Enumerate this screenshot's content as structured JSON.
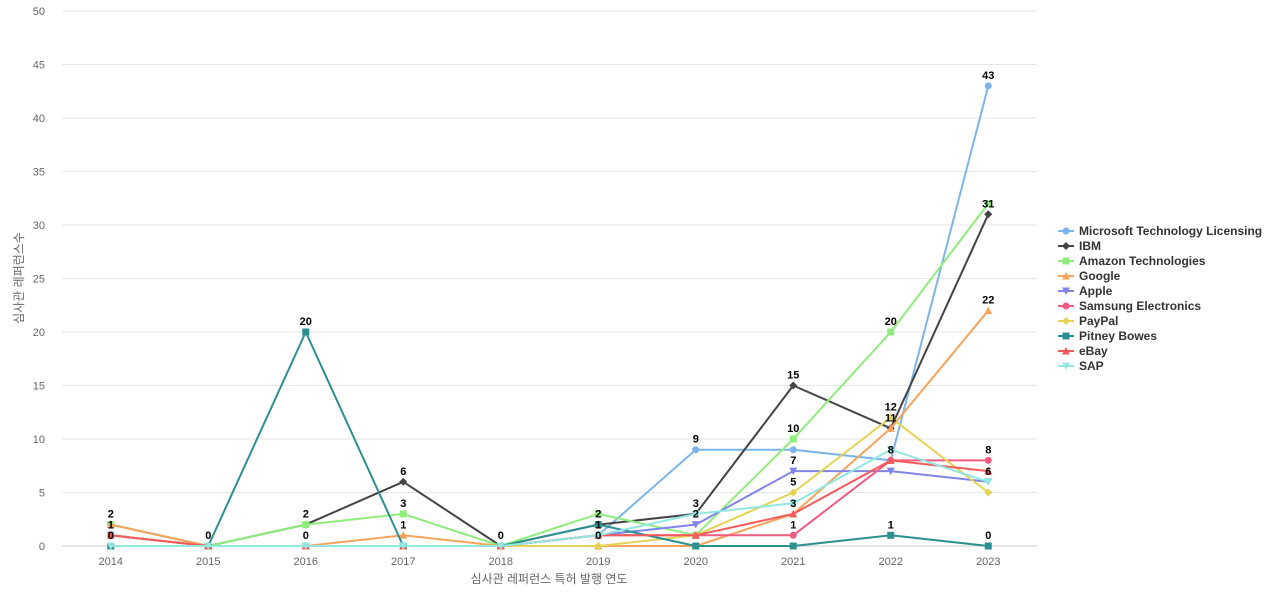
{
  "chart_data": {
    "type": "line",
    "xlabel": "심사관 레퍼런스 특허 발행 연도",
    "ylabel": "심사관 레퍼런스수",
    "x": [
      "2014",
      "2015",
      "2016",
      "2017",
      "2018",
      "2019",
      "2020",
      "2021",
      "2022",
      "2023"
    ],
    "ylim": [
      0,
      50
    ],
    "yticks": [
      0,
      5,
      10,
      15,
      20,
      25,
      30,
      35,
      40,
      45,
      50
    ],
    "grid": true,
    "legend_position": "right",
    "series": [
      {
        "name": "Microsoft Technology Licensing",
        "color": "#7cb5ec",
        "marker": "circle",
        "values": [
          2,
          0,
          0,
          0,
          0,
          1,
          9,
          9,
          8,
          43
        ],
        "labels": [
          true,
          false,
          false,
          false,
          false,
          false,
          true,
          false,
          false,
          true
        ]
      },
      {
        "name": "IBM",
        "color": "#434348",
        "marker": "diamond",
        "values": [
          1,
          0,
          2,
          6,
          0,
          2,
          3,
          15,
          11,
          31
        ],
        "labels": [
          false,
          false,
          false,
          true,
          false,
          false,
          true,
          true,
          false,
          true
        ]
      },
      {
        "name": "Amazon Technologies",
        "color": "#90ed7d",
        "marker": "square",
        "values": [
          2,
          0,
          2,
          3,
          0,
          3,
          1,
          10,
          20,
          32
        ],
        "labels": [
          false,
          false,
          true,
          true,
          false,
          false,
          false,
          true,
          true,
          false
        ]
      },
      {
        "name": "Google",
        "color": "#f7a35c",
        "marker": "triangle",
        "values": [
          2,
          0,
          0,
          1,
          0,
          0,
          0,
          3,
          11,
          22
        ],
        "labels": [
          false,
          false,
          true,
          true,
          false,
          true,
          false,
          true,
          true,
          true
        ]
      },
      {
        "name": "Apple",
        "color": "#8085e9",
        "marker": "triangle-down",
        "values": [
          1,
          0,
          0,
          0,
          0,
          1,
          2,
          7,
          7,
          6
        ],
        "labels": [
          false,
          false,
          false,
          false,
          false,
          false,
          true,
          true,
          false,
          false
        ]
      },
      {
        "name": "Samsung Electronics",
        "color": "#f15c80",
        "marker": "circle",
        "values": [
          1,
          0,
          0,
          0,
          0,
          1,
          1,
          1,
          8,
          8
        ],
        "labels": [
          false,
          false,
          false,
          false,
          false,
          false,
          false,
          true,
          false,
          true
        ]
      },
      {
        "name": "PayPal",
        "color": "#e4d354",
        "marker": "diamond",
        "values": [
          1,
          0,
          0,
          0,
          0,
          0,
          1,
          5,
          12,
          5
        ],
        "labels": [
          false,
          false,
          false,
          false,
          false,
          false,
          false,
          true,
          true,
          false
        ]
      },
      {
        "name": "Pitney Bowes",
        "color": "#2b908f",
        "marker": "square",
        "values": [
          0,
          0,
          20,
          0,
          0,
          2,
          0,
          0,
          1,
          0
        ],
        "labels": [
          true,
          true,
          true,
          false,
          true,
          true,
          false,
          false,
          true,
          true
        ]
      },
      {
        "name": "eBay",
        "color": "#f45b5b",
        "marker": "triangle",
        "values": [
          1,
          0,
          0,
          0,
          0,
          1,
          1,
          3,
          8,
          7
        ],
        "labels": [
          true,
          false,
          false,
          false,
          false,
          true,
          false,
          false,
          true,
          false
        ]
      },
      {
        "name": "SAP",
        "color": "#91e8e1",
        "marker": "triangle-down",
        "values": [
          0,
          0,
          0,
          0,
          0,
          1,
          3,
          4,
          9,
          6
        ],
        "labels": [
          false,
          false,
          false,
          false,
          false,
          false,
          false,
          false,
          false,
          true
        ]
      }
    ]
  }
}
